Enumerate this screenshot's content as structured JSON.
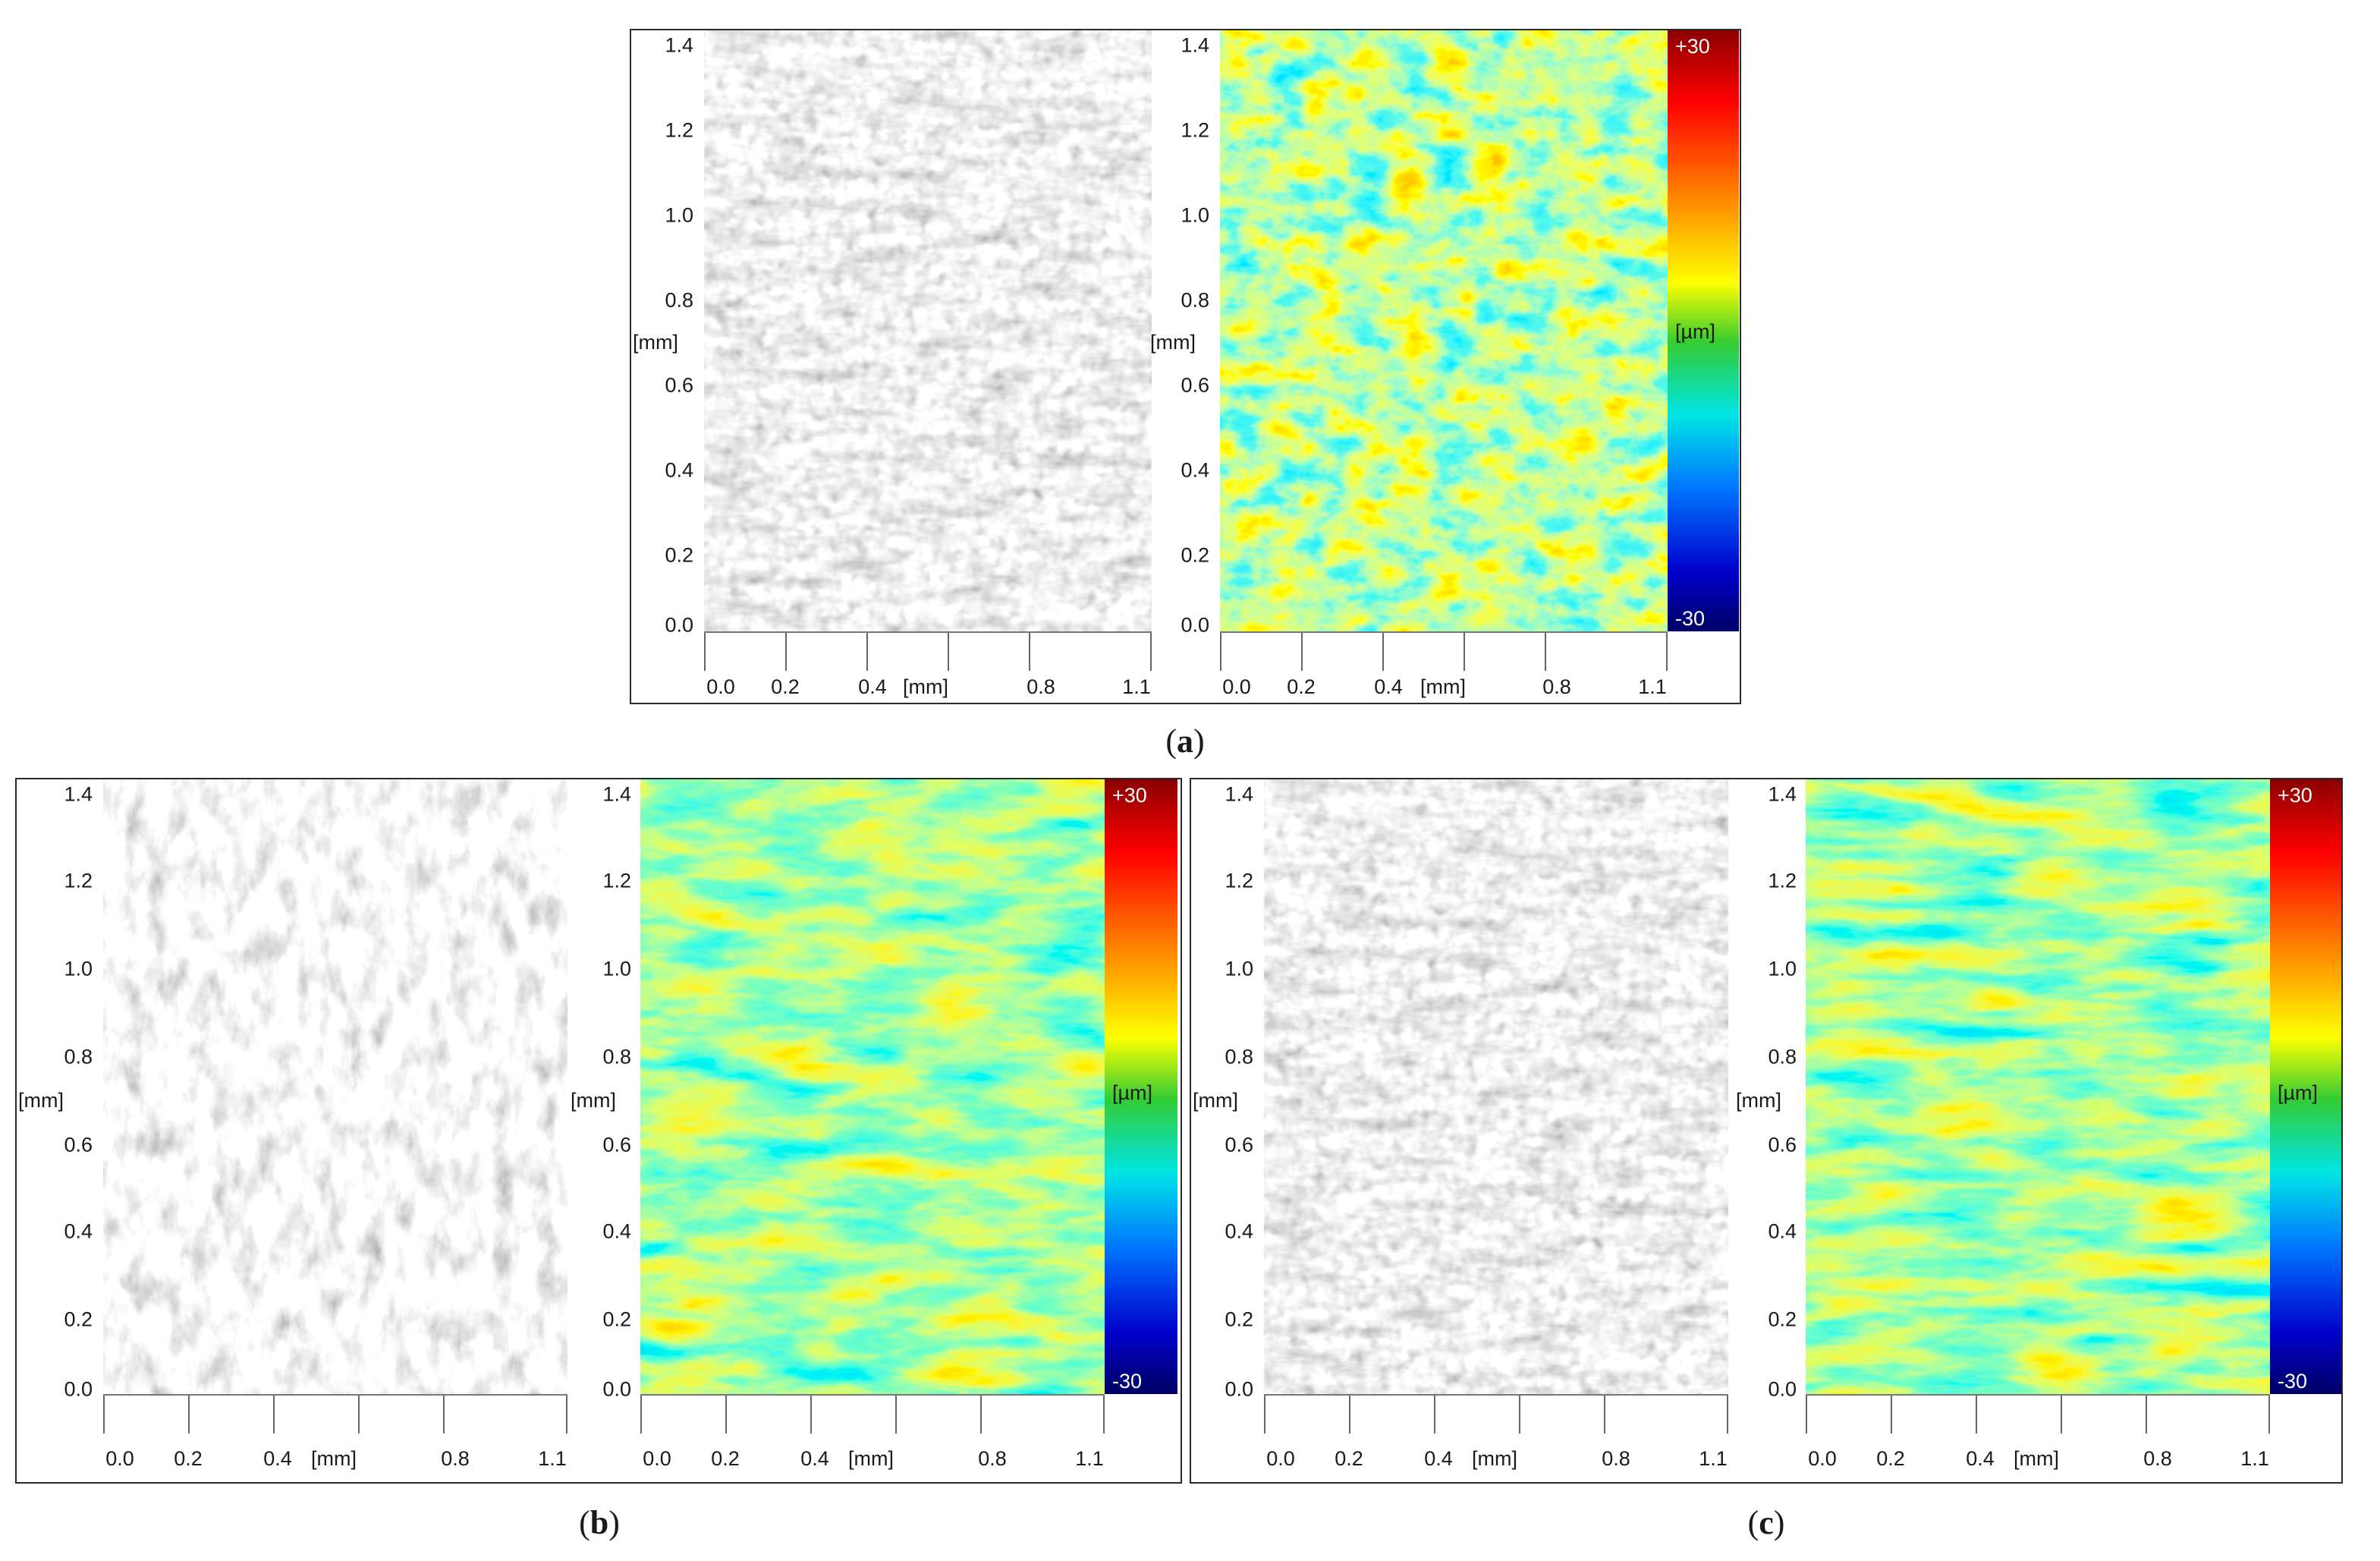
{
  "panels": [
    {
      "id": "a",
      "y_ticks": [
        "1.4",
        "1.2",
        "1.0",
        "0.8",
        "0.6",
        "0.4",
        "0.2",
        "0.0"
      ],
      "y_unit": "[mm]",
      "x_ticks": [
        "0.0",
        "0.2",
        "0.4",
        "0.8",
        "1.1"
      ],
      "x_unit": "[mm]",
      "colorbar": {
        "max": "+30",
        "min": "-30",
        "unit": "[µm]"
      }
    },
    {
      "id": "b",
      "y_ticks": [
        "1.4",
        "1.2",
        "1.0",
        "0.8",
        "0.6",
        "0.4",
        "0.2",
        "0.0"
      ],
      "y_unit": "[mm]",
      "x_ticks": [
        "0.0",
        "0.2",
        "0.4",
        "0.8",
        "1.1"
      ],
      "x_unit": "[mm]",
      "colorbar": {
        "max": "+30",
        "min": "-30",
        "unit": "[µm]"
      }
    },
    {
      "id": "c",
      "y_ticks": [
        "1.4",
        "1.2",
        "1.0",
        "0.8",
        "0.6",
        "0.4",
        "0.2",
        "0.0"
      ],
      "y_unit": "[mm]",
      "x_ticks": [
        "0.0",
        "0.2",
        "0.4",
        "0.8",
        "1.1"
      ],
      "x_unit": "[mm]",
      "colorbar": {
        "max": "+30",
        "min": "-30",
        "unit": "[µm]"
      }
    }
  ],
  "captions": {
    "a": {
      "open": "(",
      "letter": "a",
      "close": ")"
    },
    "b": {
      "open": "(",
      "letter": "b",
      "close": ")"
    },
    "c": {
      "open": "(",
      "letter": "c",
      "close": ")"
    }
  },
  "colors": {
    "colorbar_stops": [
      "#8b0000",
      "#ff0000",
      "#ff9900",
      "#ffff00",
      "#33cc33",
      "#00e5e5",
      "#0077ff",
      "#0000cc",
      "#000066"
    ]
  }
}
